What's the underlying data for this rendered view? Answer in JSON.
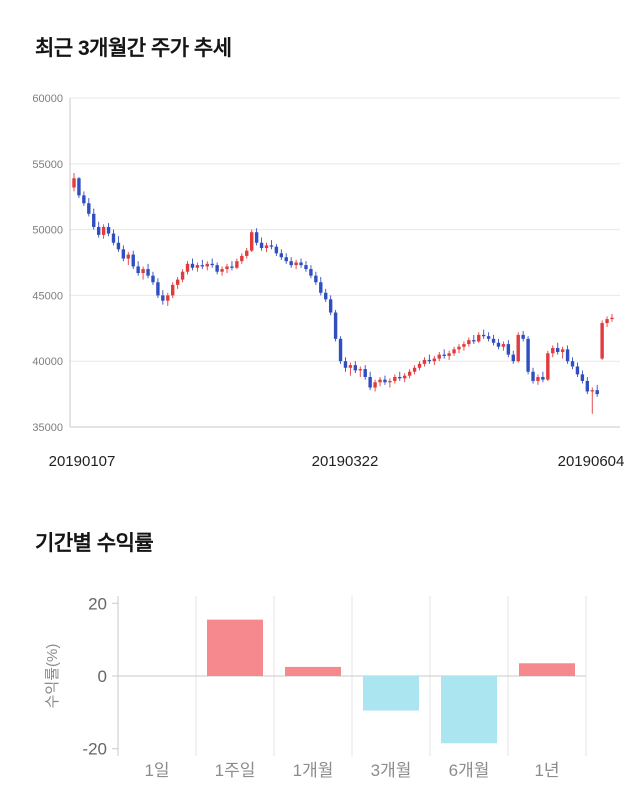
{
  "chart_data": [
    {
      "type": "candlestick",
      "title": "최근 3개월간 주가 추세",
      "x_tick_labels": [
        "20190107",
        "20190322",
        "20190604"
      ],
      "y_ticks": [
        35000,
        40000,
        45000,
        50000,
        55000,
        60000
      ],
      "ylim": [
        35000,
        60000
      ],
      "grid": true,
      "up_color": "#e13b3d",
      "down_color": "#2f4ec2",
      "axis_color": "#c9c9c9",
      "grid_color": "#e8e8e8",
      "ohlc": [
        [
          53200,
          54300,
          52900,
          53900
        ],
        [
          53900,
          54000,
          52400,
          52600
        ],
        [
          52600,
          52900,
          51800,
          52000
        ],
        [
          52000,
          52400,
          51000,
          51200
        ],
        [
          51200,
          51600,
          50000,
          50200
        ],
        [
          50200,
          50600,
          49400,
          49600
        ],
        [
          49600,
          50400,
          49300,
          50200
        ],
        [
          50200,
          50500,
          49500,
          49700
        ],
        [
          49700,
          50000,
          48800,
          49000
        ],
        [
          49000,
          49500,
          48300,
          48500
        ],
        [
          48500,
          48800,
          47600,
          47800
        ],
        [
          47800,
          48300,
          47300,
          48100
        ],
        [
          48100,
          48400,
          47000,
          47200
        ],
        [
          47200,
          47600,
          46500,
          46700
        ],
        [
          46700,
          47200,
          46200,
          47000
        ],
        [
          47000,
          47400,
          46300,
          46500
        ],
        [
          46500,
          46800,
          45800,
          46000
        ],
        [
          46000,
          46300,
          44800,
          45000
        ],
        [
          45000,
          45400,
          44300,
          44600
        ],
        [
          44600,
          45200,
          44200,
          45000
        ],
        [
          45000,
          46000,
          44800,
          45800
        ],
        [
          45800,
          46400,
          45500,
          46200
        ],
        [
          46200,
          47000,
          46000,
          46800
        ],
        [
          46800,
          47600,
          46600,
          47400
        ],
        [
          47400,
          47800,
          46900,
          47100
        ],
        [
          47100,
          47500,
          46800,
          47300
        ],
        [
          47300,
          47700,
          47000,
          47200
        ],
        [
          47200,
          47600,
          46900,
          47400
        ],
        [
          47400,
          47800,
          47100,
          47300
        ],
        [
          47300,
          47500,
          46600,
          46800
        ],
        [
          46800,
          47200,
          46500,
          47000
        ],
        [
          47000,
          47400,
          46700,
          47200
        ],
        [
          47200,
          47600,
          46900,
          47100
        ],
        [
          47100,
          47800,
          47000,
          47600
        ],
        [
          47600,
          48200,
          47400,
          48000
        ],
        [
          48000,
          48600,
          47800,
          48400
        ],
        [
          48400,
          50000,
          48300,
          49800
        ],
        [
          49800,
          50100,
          48800,
          49000
        ],
        [
          49000,
          49400,
          48400,
          48600
        ],
        [
          48600,
          49000,
          48300,
          48800
        ],
        [
          48800,
          49200,
          48500,
          48700
        ],
        [
          48700,
          48900,
          48000,
          48200
        ],
        [
          48200,
          48500,
          47700,
          47900
        ],
        [
          47900,
          48200,
          47400,
          47600
        ],
        [
          47600,
          47900,
          47100,
          47300
        ],
        [
          47300,
          47700,
          47000,
          47500
        ],
        [
          47500,
          47800,
          47100,
          47300
        ],
        [
          47300,
          47600,
          46800,
          47000
        ],
        [
          47000,
          47300,
          46300,
          46500
        ],
        [
          46500,
          46800,
          45800,
          46000
        ],
        [
          46000,
          46400,
          45000,
          45200
        ],
        [
          45200,
          45500,
          44500,
          44700
        ],
        [
          44700,
          45000,
          43500,
          43700
        ],
        [
          43700,
          43900,
          41500,
          41700
        ],
        [
          41700,
          41900,
          39800,
          40000
        ],
        [
          40000,
          40300,
          39200,
          39500
        ],
        [
          39500,
          39900,
          38900,
          39700
        ],
        [
          39700,
          40000,
          39100,
          39300
        ],
        [
          39300,
          39600,
          38800,
          39400
        ],
        [
          39400,
          39700,
          38600,
          38800
        ],
        [
          38800,
          39200,
          37800,
          38000
        ],
        [
          38000,
          38600,
          37700,
          38400
        ],
        [
          38400,
          38800,
          38100,
          38600
        ],
        [
          38600,
          38900,
          38200,
          38400
        ],
        [
          38400,
          38700,
          38000,
          38500
        ],
        [
          38500,
          39000,
          38300,
          38800
        ],
        [
          38800,
          39200,
          38500,
          38700
        ],
        [
          38700,
          39100,
          38400,
          38900
        ],
        [
          38900,
          39400,
          38700,
          39200
        ],
        [
          39200,
          39700,
          39000,
          39500
        ],
        [
          39500,
          40000,
          39300,
          39800
        ],
        [
          39800,
          40300,
          39600,
          40100
        ],
        [
          40100,
          40500,
          39800,
          40000
        ],
        [
          40000,
          40400,
          39700,
          40200
        ],
        [
          40200,
          40700,
          40000,
          40500
        ],
        [
          40500,
          40900,
          40200,
          40400
        ],
        [
          40400,
          40800,
          40100,
          40600
        ],
        [
          40600,
          41100,
          40400,
          40900
        ],
        [
          40900,
          41300,
          40600,
          41100
        ],
        [
          41100,
          41500,
          40800,
          41300
        ],
        [
          41300,
          41800,
          41100,
          41600
        ],
        [
          41600,
          42000,
          41300,
          41500
        ],
        [
          41500,
          42200,
          41400,
          42000
        ],
        [
          42000,
          42400,
          41700,
          41900
        ],
        [
          41900,
          42200,
          41500,
          41700
        ],
        [
          41700,
          42000,
          41200,
          41400
        ],
        [
          41400,
          41700,
          40900,
          41100
        ],
        [
          41100,
          41500,
          40800,
          41300
        ],
        [
          41300,
          41600,
          40300,
          40500
        ],
        [
          40500,
          40800,
          39800,
          40000
        ],
        [
          40000,
          42200,
          39900,
          42000
        ],
        [
          42000,
          42300,
          41500,
          41700
        ],
        [
          41700,
          41900,
          39000,
          39200
        ],
        [
          39200,
          39500,
          38300,
          38500
        ],
        [
          38500,
          39000,
          38200,
          38800
        ],
        [
          38800,
          39200,
          38400,
          38600
        ],
        [
          38600,
          40800,
          38500,
          40600
        ],
        [
          40600,
          41200,
          40300,
          41000
        ],
        [
          41000,
          41400,
          40500,
          40700
        ],
        [
          40700,
          41100,
          40200,
          40900
        ],
        [
          40900,
          41200,
          39800,
          40000
        ],
        [
          40000,
          40300,
          39400,
          39600
        ],
        [
          39600,
          39900,
          38800,
          39000
        ],
        [
          39000,
          39300,
          38300,
          38500
        ],
        [
          38500,
          38800,
          37500,
          37700
        ],
        [
          37700,
          38000,
          36000,
          37800
        ],
        [
          37800,
          38200,
          37300,
          37500
        ],
        [
          40200,
          43100,
          40100,
          42900
        ],
        [
          42900,
          43400,
          42600,
          43200
        ],
        [
          43200,
          43600,
          43000,
          43300
        ]
      ]
    },
    {
      "type": "bar",
      "title": "기간별 수익률",
      "ylabel": "수익률(%)",
      "categories": [
        "1일",
        "1주일",
        "1개월",
        "3개월",
        "6개월",
        "1년"
      ],
      "values": [
        0,
        15.5,
        2.5,
        -9.5,
        -18.5,
        3.5
      ],
      "y_ticks": [
        20,
        0,
        -20
      ],
      "ylim": [
        -22,
        22
      ],
      "grid": true,
      "legend_position": "none",
      "positive_color": "#f5898d",
      "negative_color": "#aae5f0",
      "axis_color": "#c9c9c9",
      "grid_color": "#e5e5e5",
      "tick_label_color": "#666666",
      "category_label_color": "#8c8c8c"
    }
  ]
}
